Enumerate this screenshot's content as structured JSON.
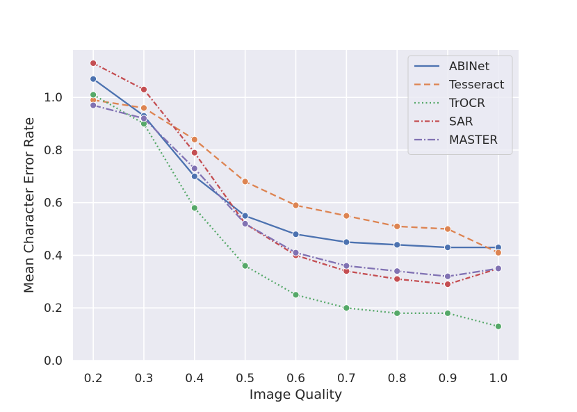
{
  "chart_data": {
    "type": "line",
    "xlabel": "Image Quality",
    "ylabel": "Mean Character Error Rate",
    "x": [
      0.2,
      0.3,
      0.4,
      0.5,
      0.6,
      0.7,
      0.8,
      0.9,
      1.0
    ],
    "x_tick_labels": [
      "0.2",
      "0.3",
      "0.4",
      "0.5",
      "0.6",
      "0.7",
      "0.8",
      "0.9",
      "1.0"
    ],
    "y_ticks": [
      0.0,
      0.2,
      0.4,
      0.6,
      0.8,
      1.0
    ],
    "y_tick_labels": [
      "0.0",
      "0.2",
      "0.4",
      "0.6",
      "0.8",
      "1.0"
    ],
    "xlim": [
      0.16,
      1.04
    ],
    "ylim": [
      0.0,
      1.18
    ],
    "grid": true,
    "legend_position": "top-right",
    "series": [
      {
        "name": "ABINet",
        "color": "#4c72b0",
        "dash": "solid",
        "values": [
          1.07,
          0.93,
          0.7,
          0.55,
          0.48,
          0.45,
          0.44,
          0.43,
          0.43
        ]
      },
      {
        "name": "Tesseract",
        "color": "#dd8452",
        "dash": "dashed",
        "values": [
          0.99,
          0.96,
          0.84,
          0.68,
          0.59,
          0.55,
          0.51,
          0.5,
          0.41
        ]
      },
      {
        "name": "TrOCR",
        "color": "#55a868",
        "dash": "dotted",
        "values": [
          1.01,
          0.9,
          0.58,
          0.36,
          0.25,
          0.2,
          0.18,
          0.18,
          0.13
        ]
      },
      {
        "name": "SAR",
        "color": "#c44e52",
        "dash": "dashdot",
        "values": [
          1.13,
          1.03,
          0.79,
          0.52,
          0.4,
          0.34,
          0.31,
          0.29,
          0.35
        ]
      },
      {
        "name": "MASTER",
        "color": "#8172b3",
        "dash": "dashdotlong",
        "values": [
          0.97,
          0.92,
          0.73,
          0.52,
          0.41,
          0.36,
          0.34,
          0.32,
          0.35
        ]
      }
    ]
  }
}
